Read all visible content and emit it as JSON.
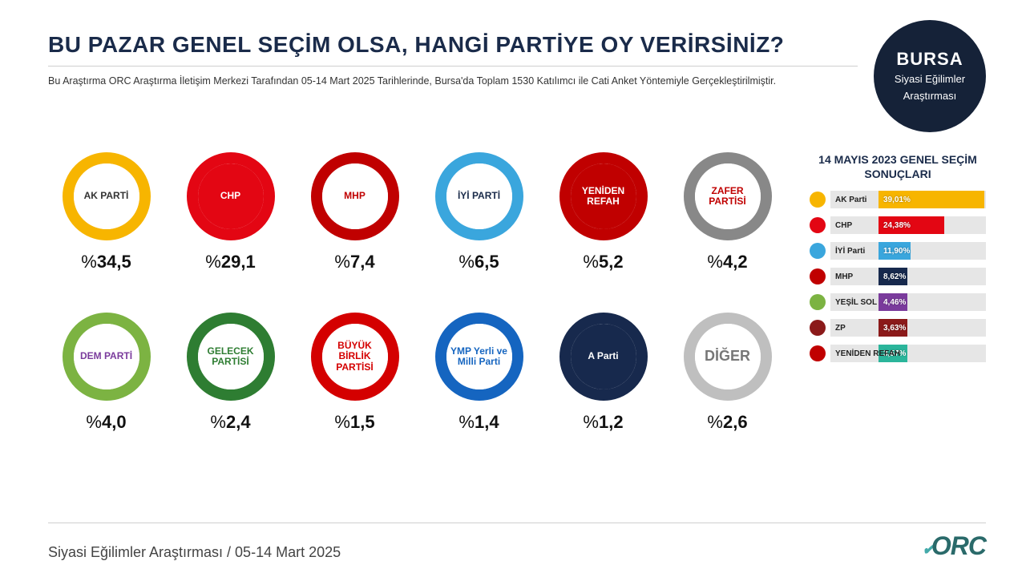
{
  "title": "BU PAZAR GENEL SEÇİM OLSA, HANGİ PARTİYE OY VERİRSİNİZ?",
  "subtitle": "Bu Araştırma ORC Araştırma İletişim Merkezi Tarafından 05-14 Mart 2025 Tarihlerinde, Bursa'da Toplam 1530 Katılımcı ile Cati Anket Yöntemiyle Gerçekleştirilmiştir.",
  "badge": {
    "city": "BURSA",
    "line1": "Siyasi Eğilimler",
    "line2": "Araştırması"
  },
  "footer_text": "Siyasi Eğilimler Araştırması / 05-14 Mart 2025",
  "brand": "ORC",
  "parties": [
    {
      "label": "AK PARTİ",
      "pct": "34,5",
      "ring": "#f7b500",
      "inner_bg": "#ffffff",
      "text_color": "#333"
    },
    {
      "label": "CHP",
      "pct": "29,1",
      "ring": "#e30613",
      "inner_bg": "#e30613",
      "text_color": "#fff"
    },
    {
      "label": "MHP",
      "pct": "7,4",
      "ring": "#c00000",
      "inner_bg": "#ffffff",
      "text_color": "#c00000"
    },
    {
      "label": "İYİ PARTİ",
      "pct": "6,5",
      "ring": "#3aa6dd",
      "inner_bg": "#ffffff",
      "text_color": "#1a2b4a"
    },
    {
      "label": "YENİDEN REFAH",
      "pct": "5,2",
      "ring": "#c00000",
      "inner_bg": "#c00000",
      "text_color": "#fff"
    },
    {
      "label": "ZAFER PARTİSİ",
      "pct": "4,2",
      "ring": "#888888",
      "inner_bg": "#ffffff",
      "text_color": "#c00000"
    },
    {
      "label": "DEM PARTİ",
      "pct": "4,0",
      "ring": "#7cb342",
      "inner_bg": "#ffffff",
      "text_color": "#7a3b9c"
    },
    {
      "label": "GELECEK PARTİSİ",
      "pct": "2,4",
      "ring": "#2e7d32",
      "inner_bg": "#ffffff",
      "text_color": "#2e7d32"
    },
    {
      "label": "BÜYÜK BİRLİK PARTİSİ",
      "pct": "1,5",
      "ring": "#d40000",
      "inner_bg": "#ffffff",
      "text_color": "#d40000"
    },
    {
      "label": "YMP Yerli ve Milli Parti",
      "pct": "1,4",
      "ring": "#1565c0",
      "inner_bg": "#ffffff",
      "text_color": "#1565c0"
    },
    {
      "label": "A Parti",
      "pct": "1,2",
      "ring": "#17294d",
      "inner_bg": "#17294d",
      "text_color": "#fff"
    },
    {
      "label": "DİĞER",
      "pct": "2,6",
      "ring": "#bfbfbf",
      "inner_bg": "#ffffff",
      "text_color": "#777",
      "big": true
    }
  ],
  "sidebar": {
    "title": "14 MAYIS 2023 GENEL SEÇİM SONUÇLARI",
    "max_pct": 40,
    "rows": [
      {
        "name": "AK Parti",
        "pct": "39,01%",
        "val": 39.01,
        "color": "#f7b500",
        "icon": "#f7b500"
      },
      {
        "name": "CHP",
        "pct": "24,38%",
        "val": 24.38,
        "color": "#e30613",
        "icon": "#e30613"
      },
      {
        "name": "İYİ Parti",
        "pct": "11,90%",
        "val": 11.9,
        "color": "#3aa6dd",
        "icon": "#3aa6dd"
      },
      {
        "name": "MHP",
        "pct": "8,62%",
        "val": 8.62,
        "color": "#17294d",
        "icon": "#c00000"
      },
      {
        "name": "YEŞİL SOL",
        "pct": "4,46%",
        "val": 4.46,
        "color": "#7a3b9c",
        "icon": "#7cb342"
      },
      {
        "name": "ZP",
        "pct": "3,63%",
        "val": 3.63,
        "color": "#8b1a1a",
        "icon": "#8b1a1a"
      },
      {
        "name": "YENİDEN REFAH",
        "pct": "3,57%",
        "val": 3.57,
        "color": "#2bb59b",
        "icon": "#c00000"
      }
    ]
  }
}
